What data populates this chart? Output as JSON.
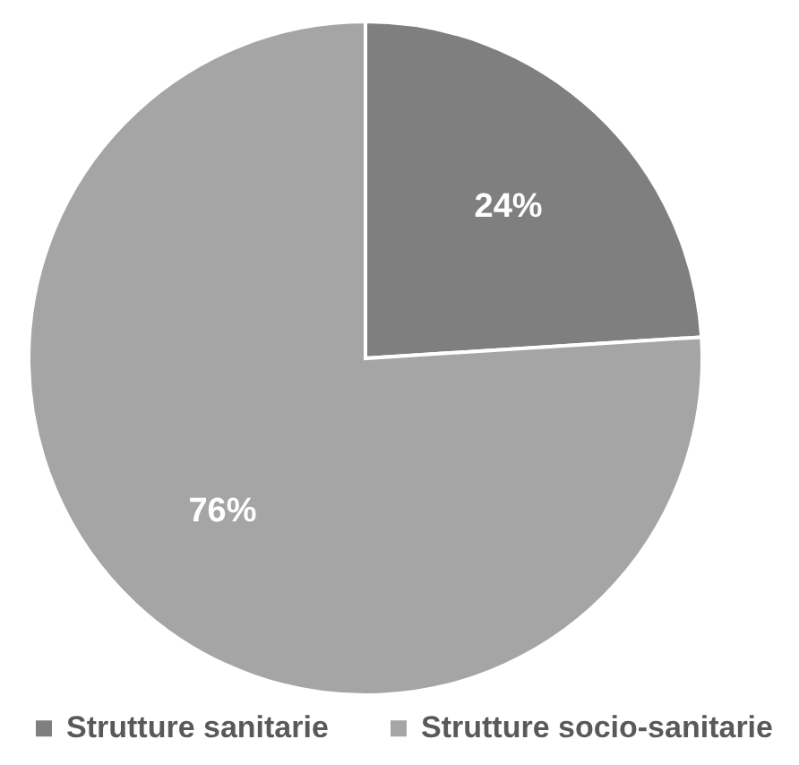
{
  "chart_data": {
    "type": "pie",
    "categories": [
      "Strutture sanitarie",
      "Strutture socio-sanitarie"
    ],
    "values": [
      24,
      76
    ],
    "colors": [
      "#7f7f7f",
      "#a5a5a5"
    ],
    "value_labels": [
      "24%",
      "76%"
    ],
    "legend": "bottom"
  }
}
